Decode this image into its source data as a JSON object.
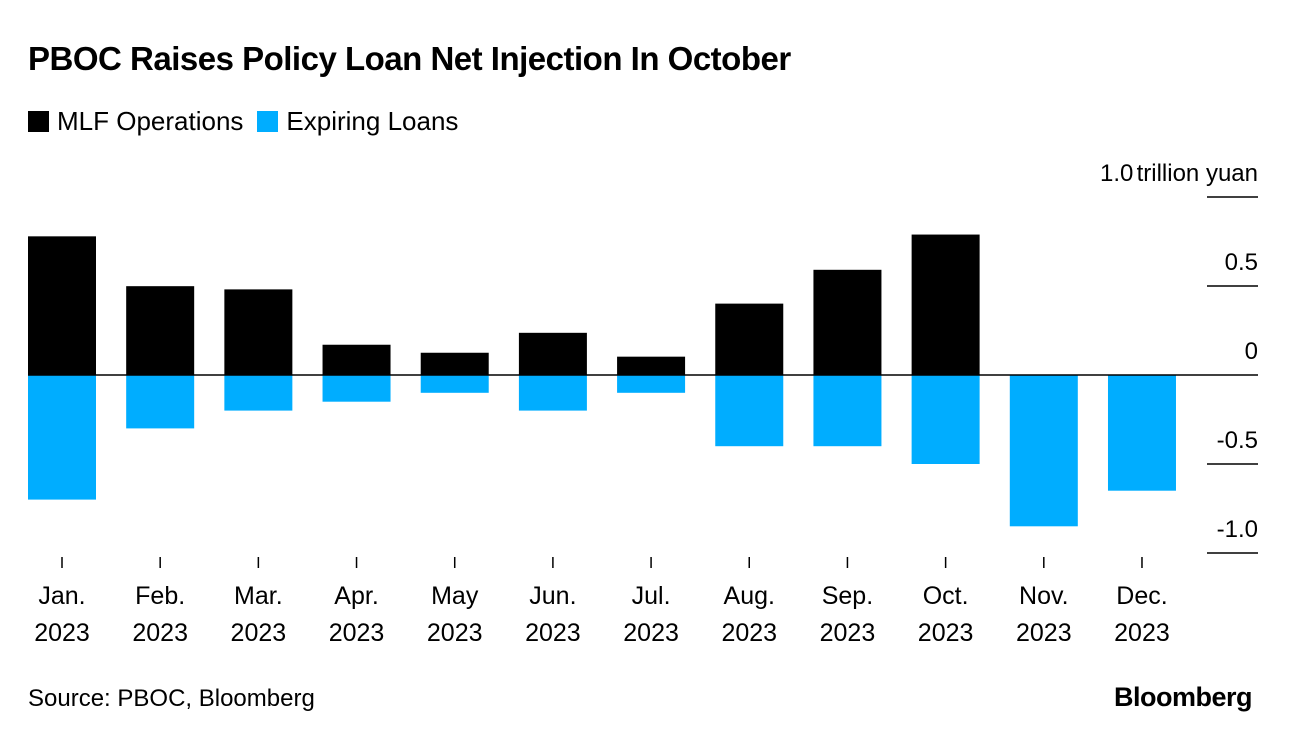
{
  "chart_data": {
    "type": "bar",
    "title": "PBOC Raises Policy Loan Net Injection In October",
    "unit_label": "trillion yuan",
    "categories": [
      "Jan. 2023",
      "Feb. 2023",
      "Mar. 2023",
      "Apr. 2023",
      "May 2023",
      "Jun. 2023",
      "Jul. 2023",
      "Aug. 2023",
      "Sep. 2023",
      "Oct. 2023",
      "Nov. 2023",
      "Dec. 2023"
    ],
    "category_lines": [
      [
        "Jan.",
        "2023"
      ],
      [
        "Feb.",
        "2023"
      ],
      [
        "Mar.",
        "2023"
      ],
      [
        "Apr.",
        "2023"
      ],
      [
        "May",
        "2023"
      ],
      [
        "Jun.",
        "2023"
      ],
      [
        "Jul.",
        "2023"
      ],
      [
        "Aug.",
        "2023"
      ],
      [
        "Sep.",
        "2023"
      ],
      [
        "Oct.",
        "2023"
      ],
      [
        "Nov.",
        "2023"
      ],
      [
        "Dec.",
        "2023"
      ]
    ],
    "series": [
      {
        "name": "MLF Operations",
        "color": "#000000",
        "values": [
          0.779,
          0.499,
          0.481,
          0.17,
          0.125,
          0.237,
          0.103,
          0.401,
          0.591,
          0.789,
          null,
          null
        ]
      },
      {
        "name": "Expiring Loans",
        "color": "#00adff",
        "values": [
          -0.7,
          -0.3,
          -0.2,
          -0.15,
          -0.1,
          -0.2,
          -0.1,
          -0.4,
          -0.4,
          -0.5,
          -0.85,
          -0.65
        ]
      }
    ],
    "yaxis": {
      "position": "right",
      "ylim": [
        -1.0,
        1.0
      ],
      "ticks": [
        1.0,
        0.5,
        0,
        -0.5,
        -1.0
      ],
      "tick_labels": [
        "1.0",
        "0.5",
        "0",
        "-0.5",
        "-1.0"
      ]
    },
    "legend": "top-left",
    "grid": false
  },
  "source": "Source: PBOC, Bloomberg",
  "brand": "Bloomberg"
}
